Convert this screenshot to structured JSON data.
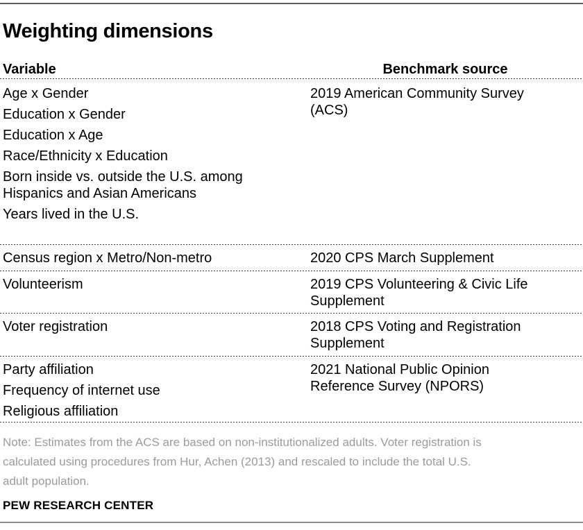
{
  "title": "Weighting dimensions",
  "table": {
    "headers": {
      "variable": "Variable",
      "benchmark": "Benchmark source"
    },
    "rows": [
      {
        "variables": [
          "Age x Gender",
          "Education x Gender",
          "Education x Age",
          "Race/Ethnicity x Education",
          "Born inside vs. outside the U.S. among Hispanics and Asian Americans",
          "Years lived in the U.S."
        ],
        "benchmark": "2019 American Community Survey (ACS)"
      },
      {
        "variables": [
          "Census region x Metro/Non-metro"
        ],
        "benchmark": "2020 CPS March Supplement"
      },
      {
        "variables": [
          "Volunteerism"
        ],
        "benchmark": "2019 CPS Volunteering & Civic Life Supplement"
      },
      {
        "variables": [
          "Voter registration"
        ],
        "benchmark": "2018 CPS Voting and Registration Supplement"
      },
      {
        "variables": [
          "Party affiliation",
          "Frequency of internet use",
          "Religious affiliation"
        ],
        "benchmark": "2021 National Public Opinion Reference Survey (NPORS)"
      }
    ]
  },
  "note_lines": [
    "Note: Estimates from the ACS are based on non-institutionalized adults. Voter registration is",
    "calculated using procedures from Hur, Achen (2013) and rescaled to include the total U.S.",
    "adult population."
  ],
  "footer": "PEW RESEARCH CENTER",
  "colors": {
    "body_text": "#000000",
    "note_text": "#9b9b9b",
    "top_rule": "#5f5f5f",
    "bottom_rule": "#8d8d8d",
    "row_divider": "#3a3a3a"
  }
}
